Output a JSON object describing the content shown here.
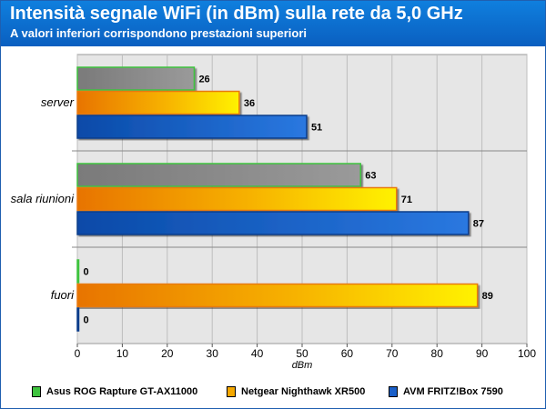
{
  "title": "Intensità segnale WiFi (in dBm) sulla rete da 5,0 GHz",
  "subtitle": "A valori inferiori corrispondono prestazioni superiori",
  "chart_data": {
    "type": "bar",
    "orientation": "horizontal",
    "categories": [
      "server",
      "sala riunioni",
      "fuori"
    ],
    "series": [
      {
        "name": "Asus ROG Rapture GT-AX11000",
        "values": [
          26,
          63,
          0
        ],
        "color": "#888888",
        "edge": "#3ec33e",
        "swatch": "#3ec33e"
      },
      {
        "name": "Netgear Nighthawk XR500",
        "values": [
          36,
          71,
          89
        ],
        "color": "#f5b800",
        "edge": "#e87a10",
        "swatch": "#f5a800"
      },
      {
        "name": "AVM FRITZ!Box 7590",
        "values": [
          51,
          87,
          0
        ],
        "color": "#1a64c8",
        "edge": "#0a3c8a",
        "swatch": "#1a5fc8"
      }
    ],
    "xlabel": "dBm",
    "xlim": [
      0,
      100
    ],
    "xticks": [
      0,
      10,
      20,
      30,
      40,
      50,
      60,
      70,
      80,
      90,
      100
    ],
    "grid": true,
    "legend_position": "bottom"
  }
}
